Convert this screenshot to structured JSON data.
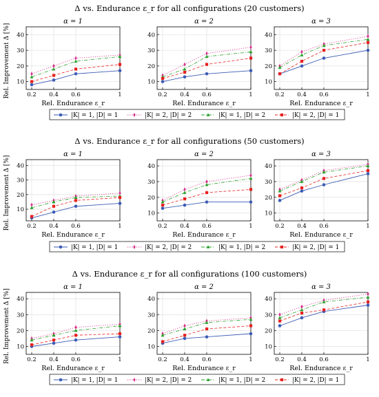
{
  "chart_data": [
    {
      "type": "line",
      "title": "Δ vs. Endurance ε_r for all configurations (20 customers)",
      "ylabel": "Rel. Improvement Δ [%]",
      "legend": {
        "placement": "bottom",
        "entries": [
          "|K| = 1, |D| = 1",
          "|K| = 2, |D| = 2",
          "|K| = 1, |D| = 2",
          "|K| = 2, |D| = 1"
        ]
      },
      "panels": [
        {
          "subtitle": "α = 1",
          "xlabel": "Rel. Endurance ε_r",
          "x": [
            0.2,
            0.4,
            0.6,
            1.0
          ],
          "xticks": [
            "0.2",
            "0.4",
            "0.6",
            "1"
          ],
          "ylim": [
            5,
            45
          ],
          "yticks": [
            "10",
            "20",
            "30",
            "40"
          ],
          "series": [
            {
              "name": "|K| = 1, |D| = 1",
              "values": [
                8,
                11,
                15,
                17
              ]
            },
            {
              "name": "|K| = 2, |D| = 2",
              "values": [
                15,
                20,
                25,
                27
              ]
            },
            {
              "name": "|K| = 1, |D| = 2",
              "values": [
                13,
                18,
                23,
                26
              ]
            },
            {
              "name": "|K| = 2, |D| = 1",
              "values": [
                10,
                14,
                18,
                21
              ]
            }
          ]
        },
        {
          "subtitle": "α = 2",
          "xlabel": "Rel. Endurance ε_r",
          "x": [
            0.2,
            0.4,
            0.6,
            1.0
          ],
          "xticks": [
            "0.2",
            "0.4",
            "0.6",
            "1"
          ],
          "ylim": [
            5,
            45
          ],
          "yticks": [
            "10",
            "20",
            "30",
            "40"
          ],
          "series": [
            {
              "name": "|K| = 1, |D| = 1",
              "values": [
                10,
                13,
                15,
                17
              ]
            },
            {
              "name": "|K| = 2, |D| = 2",
              "values": [
                14,
                21,
                28,
                32
              ]
            },
            {
              "name": "|K| = 1, |D| = 2",
              "values": [
                13,
                18,
                26,
                29
              ]
            },
            {
              "name": "|K| = 2, |D| = 1",
              "values": [
                12,
                16,
                21,
                25
              ]
            }
          ]
        },
        {
          "subtitle": "α = 3",
          "xlabel": "Rel. Endurance ε_r",
          "x": [
            0.2,
            0.4,
            0.6,
            1.0
          ],
          "xticks": [
            "0.2",
            "0.4",
            "0.6",
            "1"
          ],
          "ylim": [
            5,
            45
          ],
          "yticks": [
            "10",
            "20",
            "30",
            "40"
          ],
          "series": [
            {
              "name": "|K| = 1, |D| = 1",
              "values": [
                15,
                20,
                25,
                30
              ]
            },
            {
              "name": "|K| = 2, |D| = 2",
              "values": [
                20,
                29,
                34,
                39
              ]
            },
            {
              "name": "|K| = 1, |D| = 2",
              "values": [
                19,
                27,
                33,
                37
              ]
            },
            {
              "name": "|K| = 2, |D| = 1",
              "values": [
                15,
                23,
                30,
                35
              ]
            }
          ]
        }
      ]
    },
    {
      "type": "line",
      "title": "Δ vs. Endurance ε_r for all configurations (50 customers)",
      "ylabel": "Rel. Improvement Δ [%]",
      "legend": {
        "placement": "bottom",
        "entries": [
          "|K| = 1, |D| = 1",
          "|K| = 2, |D| = 2",
          "|K| = 1, |D| = 2",
          "|K| = 2, |D| = 1"
        ]
      },
      "panels": [
        {
          "subtitle": "α = 1",
          "xlabel": "Rel. Endurance ε_r",
          "x": [
            0.2,
            0.4,
            0.6,
            1.0
          ],
          "xticks": [
            "0.2",
            "0.4",
            "0.6",
            "1"
          ],
          "ylim": [
            2,
            44
          ],
          "yticks": [
            "10",
            "20",
            "30",
            "40"
          ],
          "series": [
            {
              "name": "|K| = 1, |D| = 1",
              "values": [
                4,
                8,
                12,
                14
              ]
            },
            {
              "name": "|K| = 2, |D| = 2",
              "values": [
                13,
                16,
                19,
                21
              ]
            },
            {
              "name": "|K| = 1, |D| = 2",
              "values": [
                11,
                15,
                18,
                19
              ]
            },
            {
              "name": "|K| = 2, |D| = 1",
              "values": [
                5,
                12,
                16,
                18
              ]
            }
          ]
        },
        {
          "subtitle": "α = 2",
          "xlabel": "Rel. Endurance ε_r",
          "x": [
            0.2,
            0.4,
            0.6,
            1.0
          ],
          "xticks": [
            "0.2",
            "0.4",
            "0.6",
            "1"
          ],
          "ylim": [
            5,
            44
          ],
          "yticks": [
            "10",
            "20",
            "30",
            "40"
          ],
          "series": [
            {
              "name": "|K| = 1, |D| = 1",
              "values": [
                13,
                15,
                17,
                17
              ]
            },
            {
              "name": "|K| = 2, |D| = 2",
              "values": [
                18,
                25,
                30,
                34
              ]
            },
            {
              "name": "|K| = 1, |D| = 2",
              "values": [
                17,
                23,
                28,
                32
              ]
            },
            {
              "name": "|K| = 2, |D| = 1",
              "values": [
                15,
                19,
                23,
                25
              ]
            }
          ]
        },
        {
          "subtitle": "α = 3",
          "xlabel": "Rel. Endurance ε_r",
          "x": [
            0.2,
            0.4,
            0.6,
            1.0
          ],
          "xticks": [
            "0.2",
            "0.4",
            "0.6",
            "1"
          ],
          "ylim": [
            5,
            44
          ],
          "yticks": [
            "10",
            "20",
            "30",
            "40"
          ],
          "series": [
            {
              "name": "|K| = 1, |D| = 1",
              "values": [
                18,
                24,
                28,
                35
              ]
            },
            {
              "name": "|K| = 2, |D| = 2",
              "values": [
                25,
                31,
                37,
                41
              ]
            },
            {
              "name": "|K| = 1, |D| = 2",
              "values": [
                24,
                30,
                36,
                40
              ]
            },
            {
              "name": "|K| = 2, |D| = 1",
              "values": [
                21,
                26,
                32,
                37
              ]
            }
          ]
        }
      ]
    },
    {
      "type": "line",
      "title": "Δ vs. Endurance ε_r for all configurations (100 customers)",
      "ylabel": "Rel. Improvement Δ [%]",
      "legend": {
        "placement": "bottom",
        "entries": [
          "|K| = 1, |D| = 1",
          "|K| = 2, |D| = 2",
          "|K| = 1, |D| = 2",
          "|K| = 2, |D| = 1"
        ]
      },
      "panels": [
        {
          "subtitle": "α = 1",
          "xlabel": "Rel. Endurance ε_r",
          "x": [
            0.2,
            0.4,
            0.6,
            1.0
          ],
          "xticks": [
            "0.2",
            "0.4",
            "0.6",
            "1"
          ],
          "ylim": [
            5,
            44
          ],
          "yticks": [
            "10",
            "20",
            "30",
            "40"
          ],
          "series": [
            {
              "name": "|K| = 1, |D| = 1",
              "values": [
                10,
                12,
                14,
                16
              ]
            },
            {
              "name": "|K| = 2, |D| = 2",
              "values": [
                15,
                18,
                22,
                24
              ]
            },
            {
              "name": "|K| = 1, |D| = 2",
              "values": [
                14,
                17,
                20,
                23
              ]
            },
            {
              "name": "|K| = 2, |D| = 1",
              "values": [
                11,
                14,
                17,
                18
              ]
            }
          ]
        },
        {
          "subtitle": "α = 2",
          "xlabel": "Rel. Endurance ε_r",
          "x": [
            0.2,
            0.4,
            0.6,
            1.0
          ],
          "xticks": [
            "0.2",
            "0.4",
            "0.6",
            "1"
          ],
          "ylim": [
            5,
            44
          ],
          "yticks": [
            "10",
            "20",
            "30",
            "40"
          ],
          "series": [
            {
              "name": "|K| = 1, |D| = 1",
              "values": [
                12,
                15,
                16,
                18
              ]
            },
            {
              "name": "|K| = 2, |D| = 2",
              "values": [
                18,
                23,
                26,
                28
              ]
            },
            {
              "name": "|K| = 1, |D| = 2",
              "values": [
                17,
                21,
                25,
                27
              ]
            },
            {
              "name": "|K| = 2, |D| = 1",
              "values": [
                13,
                17,
                21,
                23
              ]
            }
          ]
        },
        {
          "subtitle": "α = 3",
          "xlabel": "Rel. Endurance ε_r",
          "x": [
            0.2,
            0.4,
            0.6,
            1.0
          ],
          "xticks": [
            "0.2",
            "0.4",
            "0.6",
            "1"
          ],
          "ylim": [
            5,
            44
          ],
          "yticks": [
            "10",
            "20",
            "30",
            "40"
          ],
          "series": [
            {
              "name": "|K| = 1, |D| = 1",
              "values": [
                23,
                28,
                32,
                36
              ]
            },
            {
              "name": "|K| = 2, |D| = 2",
              "values": [
                30,
                35,
                39,
                43
              ]
            },
            {
              "name": "|K| = 1, |D| = 2",
              "values": [
                28,
                33,
                38,
                41
              ]
            },
            {
              "name": "|K| = 2, |D| = 1",
              "values": [
                26,
                31,
                33,
                38
              ]
            }
          ]
        }
      ]
    }
  ],
  "style": {
    "series_colors": [
      "#3b5bb5",
      "#d62f8a",
      "#2ca02c",
      "#e8201f"
    ],
    "series_dash": [
      "solid",
      "dotted",
      "dashdot",
      "dashed"
    ],
    "series_markers": [
      "circle",
      "diamond",
      "triangle",
      "square"
    ],
    "grid": "on"
  }
}
